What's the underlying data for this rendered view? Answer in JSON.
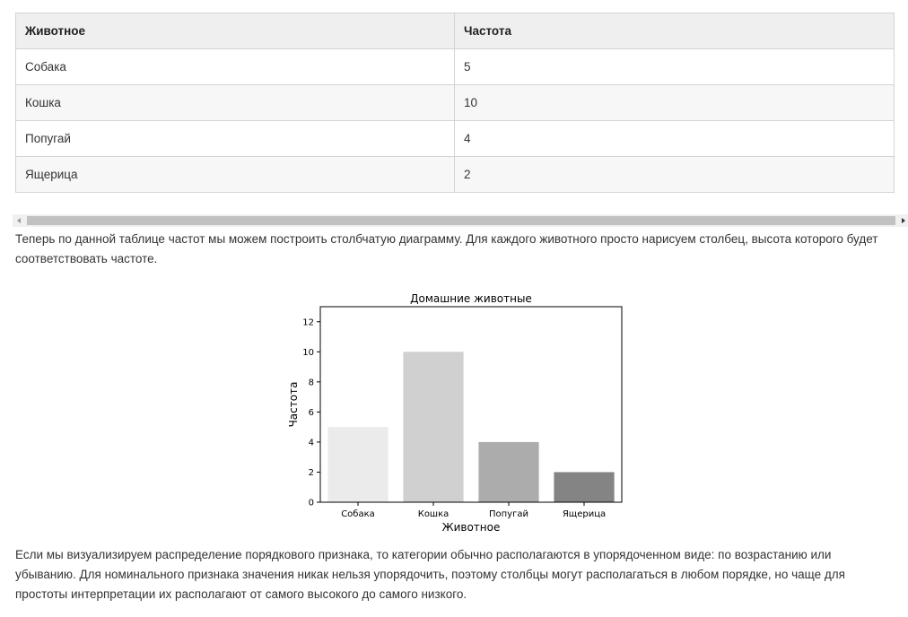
{
  "table": {
    "headers": [
      "Животное",
      "Частота"
    ],
    "rows": [
      [
        "Собака",
        "5"
      ],
      [
        "Кошка",
        "10"
      ],
      [
        "Попугай",
        "4"
      ],
      [
        "Ящерица",
        "2"
      ]
    ]
  },
  "paragraphs": {
    "intro": "Теперь по данной таблице частот мы можем построить столбчатую диаграмму. Для каждого животного просто нарисуем столбец, высота которого будет соответствовать частоте.",
    "outro": "Если мы визуализируем распределение порядкового признака, то категории обычно располагаются в упорядоченном виде: по возрастанию или убыванию. Для номинального признака значения никак нельзя упорядочить, поэтому столбцы могут располагаться в любом порядке, но чаще для простоты интерпретации их располагают от самого высокого до самого низкого."
  },
  "chart_data": {
    "type": "bar",
    "title": "Домашние животные",
    "xlabel": "Животное",
    "ylabel": "Частота",
    "categories": [
      "Собака",
      "Кошка",
      "Попугай",
      "Ящерица"
    ],
    "values": [
      5,
      10,
      4,
      2
    ],
    "colors": [
      "#ebebeb",
      "#d0d0d0",
      "#acacac",
      "#848484"
    ],
    "ylim": [
      0,
      13
    ],
    "yticks": [
      0,
      2,
      4,
      6,
      8,
      10,
      12
    ],
    "grid": false
  }
}
